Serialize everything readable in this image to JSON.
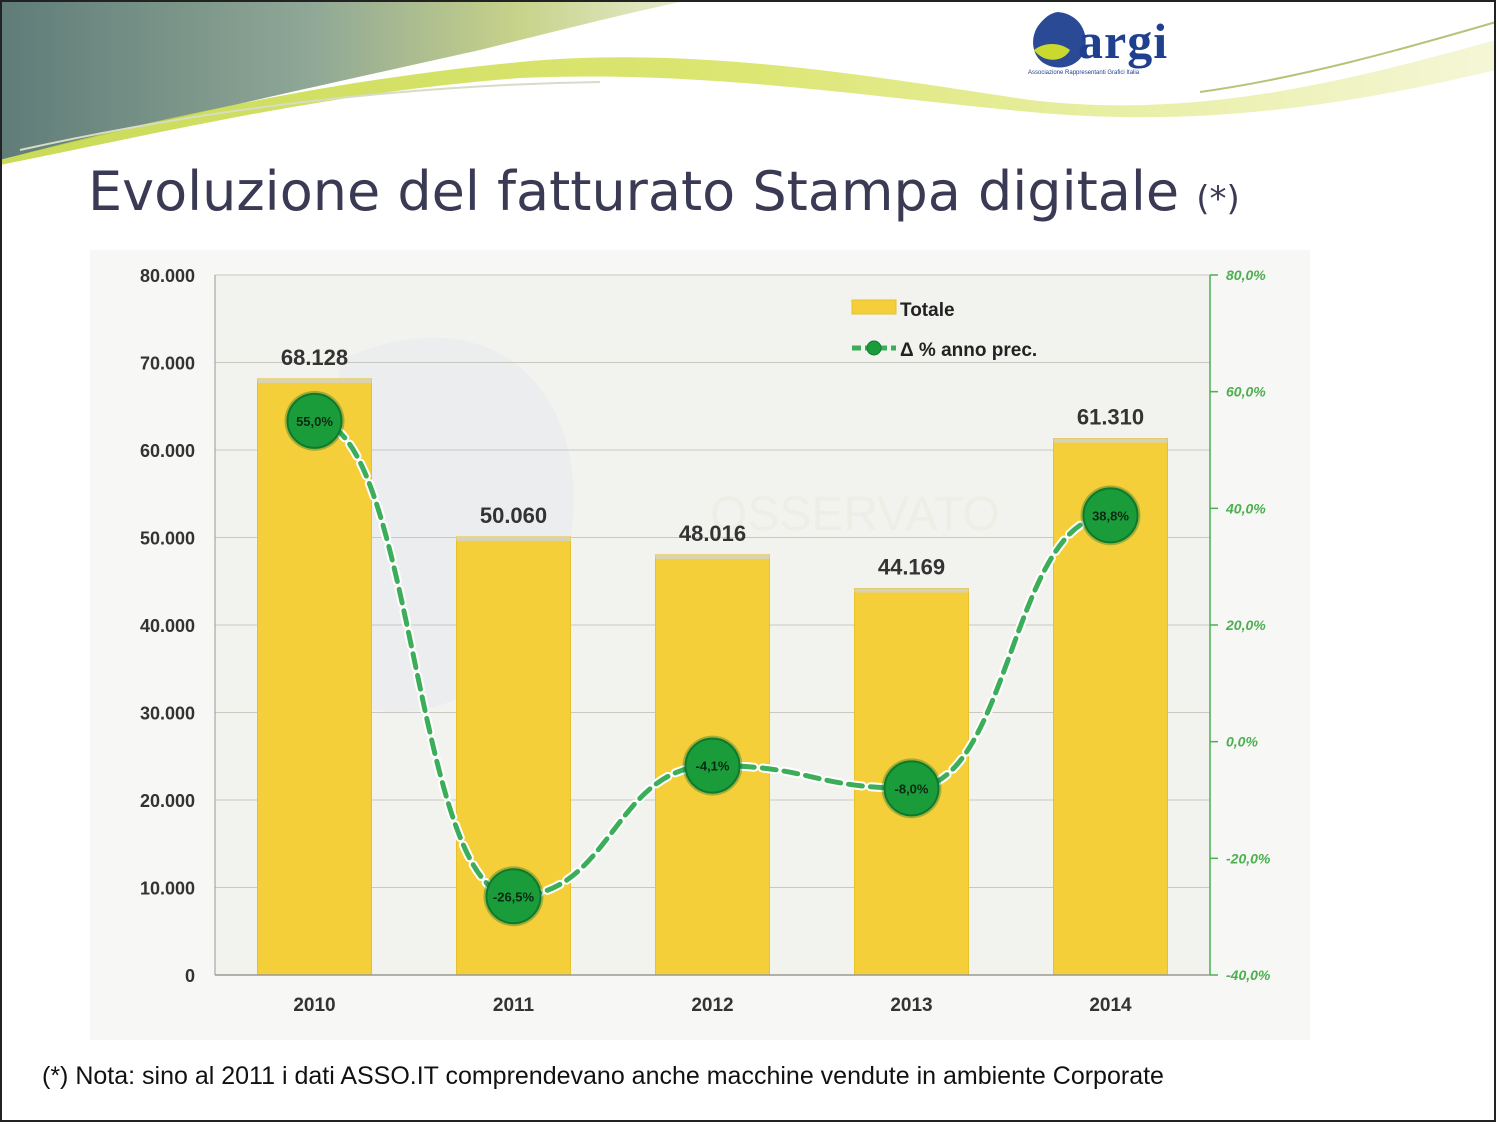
{
  "slide": {
    "title": "Evoluzione del fatturato Stampa digitale",
    "title_suffix": "(*)",
    "note": "(*) Nota: sino al 2011 i dati ASSO.IT comprendevano anche macchine vendute in ambiente Corporate",
    "logo_text": "argi",
    "logo_subtitle": "Associazione Rappresentanti Grafici Italia",
    "watermark_text": "OSSERVATO"
  },
  "colors": {
    "bar_fill": "#f5cf3a",
    "line_green": "#3cae5a",
    "marker_green": "#1a9c3a",
    "right_axis_green": "#4caf50",
    "header_dark": "#6f8a86",
    "header_lime": "#c8dc3a"
  },
  "chart_data": {
    "type": "bar",
    "categories": [
      "2010",
      "2011",
      "2012",
      "2013",
      "2014"
    ],
    "series": [
      {
        "name": "Totale",
        "type": "bar",
        "axis": "left",
        "values": [
          68128,
          50060,
          48016,
          44169,
          61310
        ],
        "labels": [
          "68.128",
          "50.060",
          "48.016",
          "44.169",
          "61.310"
        ]
      },
      {
        "name": "Δ % anno prec.",
        "type": "line",
        "axis": "right",
        "style": "dashed",
        "values": [
          55.0,
          -26.5,
          -4.1,
          -8.0,
          38.8
        ],
        "labels": [
          "55,0%",
          "-26,5%",
          "-4,1%",
          "-8,0%",
          "38,8%"
        ]
      }
    ],
    "left_axis": {
      "ylim": [
        0,
        80000
      ],
      "ticks": [
        "0",
        "10.000",
        "20.000",
        "30.000",
        "40.000",
        "50.000",
        "60.000",
        "70.000",
        "80.000"
      ]
    },
    "right_axis": {
      "ylim": [
        -40,
        80
      ],
      "ticks": [
        "-40,0%",
        "-20,0%",
        "0,0%",
        "20,0%",
        "40,0%",
        "60,0%",
        "80,0%"
      ]
    },
    "legend": [
      "Totale",
      "Δ % anno prec."
    ],
    "legend_position": "top-right",
    "grid": true
  }
}
